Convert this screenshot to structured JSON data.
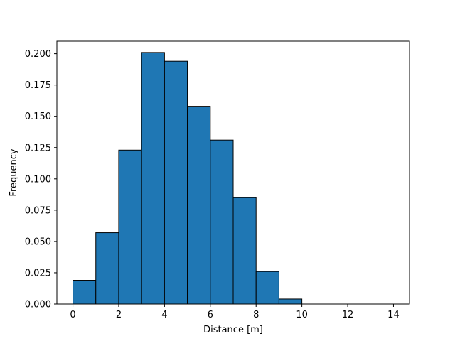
{
  "chart_data": {
    "type": "bar",
    "subtype": "histogram",
    "title": "",
    "xlabel": "Distance [m]",
    "ylabel": "Frequency",
    "bin_edges": [
      0,
      1,
      2,
      3,
      4,
      5,
      6,
      7,
      8,
      9,
      10,
      11,
      12,
      13,
      14
    ],
    "values": [
      0.019,
      0.057,
      0.123,
      0.201,
      0.194,
      0.158,
      0.131,
      0.085,
      0.026,
      0.004,
      0,
      0,
      0,
      0
    ],
    "xlim": [
      -0.7,
      14.7
    ],
    "ylim": [
      0,
      0.21
    ],
    "xticks": [
      0,
      2,
      4,
      6,
      8,
      10,
      12,
      14
    ],
    "xtick_labels": [
      "0",
      "2",
      "4",
      "6",
      "8",
      "10",
      "12",
      "14"
    ],
    "yticks": [
      0,
      0.025,
      0.05,
      0.075,
      0.1,
      0.125,
      0.15,
      0.175,
      0.2
    ],
    "ytick_labels": [
      "0.000",
      "0.025",
      "0.050",
      "0.075",
      "0.100",
      "0.125",
      "0.150",
      "0.175",
      "0.200"
    ],
    "bar_color": "#1f77b4",
    "edge_color": "#000000",
    "grid": false,
    "legend": "none"
  }
}
